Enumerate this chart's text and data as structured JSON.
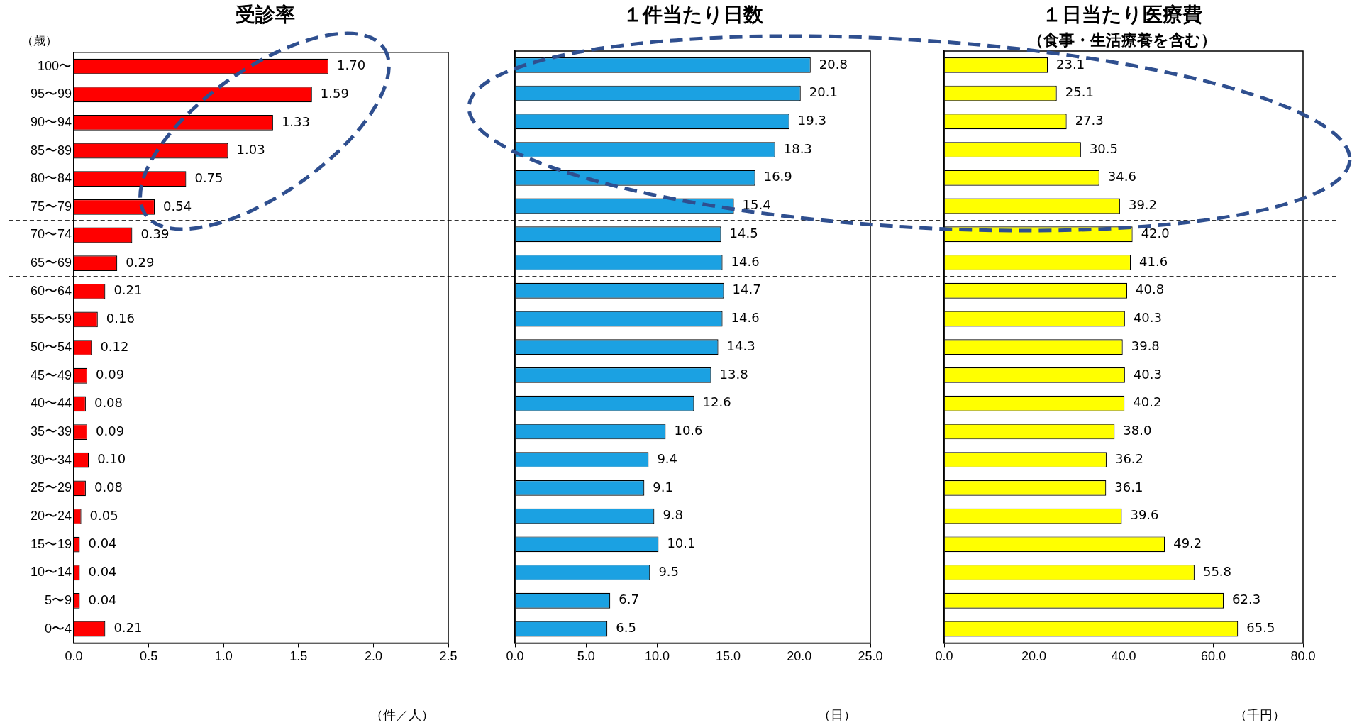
{
  "chart_data": [
    {
      "type": "bar",
      "orientation": "horizontal",
      "title": "受診率",
      "ylabel": "（歳）",
      "xlabel": "（件／人）",
      "categories": [
        "100〜",
        "95〜99",
        "90〜94",
        "85〜89",
        "80〜84",
        "75〜79",
        "70〜74",
        "65〜69",
        "60〜64",
        "55〜59",
        "50〜54",
        "45〜49",
        "40〜44",
        "35〜39",
        "30〜34",
        "25〜29",
        "20〜24",
        "15〜19",
        "10〜14",
        "5〜9",
        "0〜4"
      ],
      "values": [
        1.7,
        1.59,
        1.33,
        1.03,
        0.75,
        0.54,
        0.39,
        0.29,
        0.21,
        0.16,
        0.12,
        0.09,
        0.08,
        0.09,
        0.1,
        0.08,
        0.05,
        0.04,
        0.04,
        0.04,
        0.21
      ],
      "value_labels": [
        "1.70",
        "1.59",
        "1.33",
        "1.03",
        "0.75",
        "0.54",
        "0.39",
        "0.29",
        "0.21",
        "0.16",
        "0.12",
        "0.09",
        "0.08",
        "0.09",
        "0.10",
        "0.08",
        "0.05",
        "0.04",
        "0.04",
        "0.04",
        "0.21"
      ],
      "color": "#ff0000",
      "xlim": [
        0,
        2.5
      ],
      "xticks": [
        {
          "value": 0,
          "label": "0.0"
        },
        0.5,
        {
          "value": 1,
          "label": "1.0"
        },
        1.5,
        {
          "value": 2,
          "label": "2.0"
        },
        2.5
      ],
      "grid": false,
      "legend": false
    },
    {
      "type": "bar",
      "orientation": "horizontal",
      "title": "１件当たり日数",
      "xlabel": "（日）",
      "tick_labels": "x",
      "categories": [
        null,
        null,
        null,
        null,
        null,
        null,
        null,
        null,
        null,
        null,
        null,
        null,
        null,
        null,
        null,
        null,
        null,
        null,
        null,
        null,
        null
      ],
      "values": [
        20.8,
        20.1,
        19.3,
        18.3,
        16.9,
        15.4,
        14.5,
        14.6,
        14.7,
        14.6,
        14.3,
        13.8,
        12.6,
        10.6,
        9.4,
        9.1,
        9.8,
        10.1,
        9.5,
        6.7,
        6.5
      ],
      "value_labels": [
        "20.8",
        "20.1",
        "19.3",
        "18.3",
        "16.9",
        "15.4",
        "14.5",
        "14.6",
        "14.7",
        "14.6",
        "14.3",
        "13.8",
        "12.6",
        "10.6",
        "9.4",
        "9.1",
        "9.8",
        "10.1",
        "9.5",
        "6.7",
        "6.5"
      ],
      "color": "#1ba1e2",
      "xlim": [
        0,
        25
      ],
      "xticks": [
        {
          "value": 0,
          "label": "0.0"
        },
        {
          "value": 5,
          "label": "5.0"
        },
        {
          "value": 10,
          "label": "10.0"
        },
        {
          "value": 15,
          "label": "15.0"
        },
        {
          "value": 20,
          "label": "20.0"
        },
        {
          "value": 25,
          "label": "25.0"
        }
      ],
      "grid": false,
      "legend": false
    },
    {
      "type": "bar",
      "orientation": "horizontal",
      "title": "１日当たり医療費",
      "subtitle": "（食事・生活療養を含む）",
      "xlabel": "（千円）",
      "tick_labels": "x",
      "categories": [
        null,
        null,
        null,
        null,
        null,
        null,
        null,
        null,
        null,
        null,
        null,
        null,
        null,
        null,
        null,
        null,
        null,
        null,
        null,
        null,
        null
      ],
      "values": [
        23.1,
        25.1,
        27.3,
        30.5,
        34.6,
        39.2,
        42.0,
        41.6,
        40.8,
        40.3,
        39.8,
        40.3,
        40.2,
        38.0,
        36.2,
        36.1,
        39.6,
        49.2,
        55.8,
        62.3,
        65.5
      ],
      "value_labels": [
        "23.1",
        "25.1",
        "27.3",
        "30.5",
        "34.6",
        "39.2",
        "42.0",
        "41.6",
        "40.8",
        "40.3",
        "39.8",
        "40.3",
        "40.2",
        "38.0",
        "36.2",
        "36.1",
        "39.6",
        "49.2",
        "55.8",
        "62.3",
        "65.5"
      ],
      "color": "#ffff00",
      "xlim": [
        0,
        80
      ],
      "xticks": [
        {
          "value": 0,
          "label": "0.0"
        },
        {
          "value": 20,
          "label": "20.0"
        },
        {
          "value": 40,
          "label": "40.0"
        },
        {
          "value": 60,
          "label": "60.0"
        },
        {
          "value": 80,
          "label": "80.0"
        }
      ],
      "grid": false,
      "legend": false
    }
  ]
}
